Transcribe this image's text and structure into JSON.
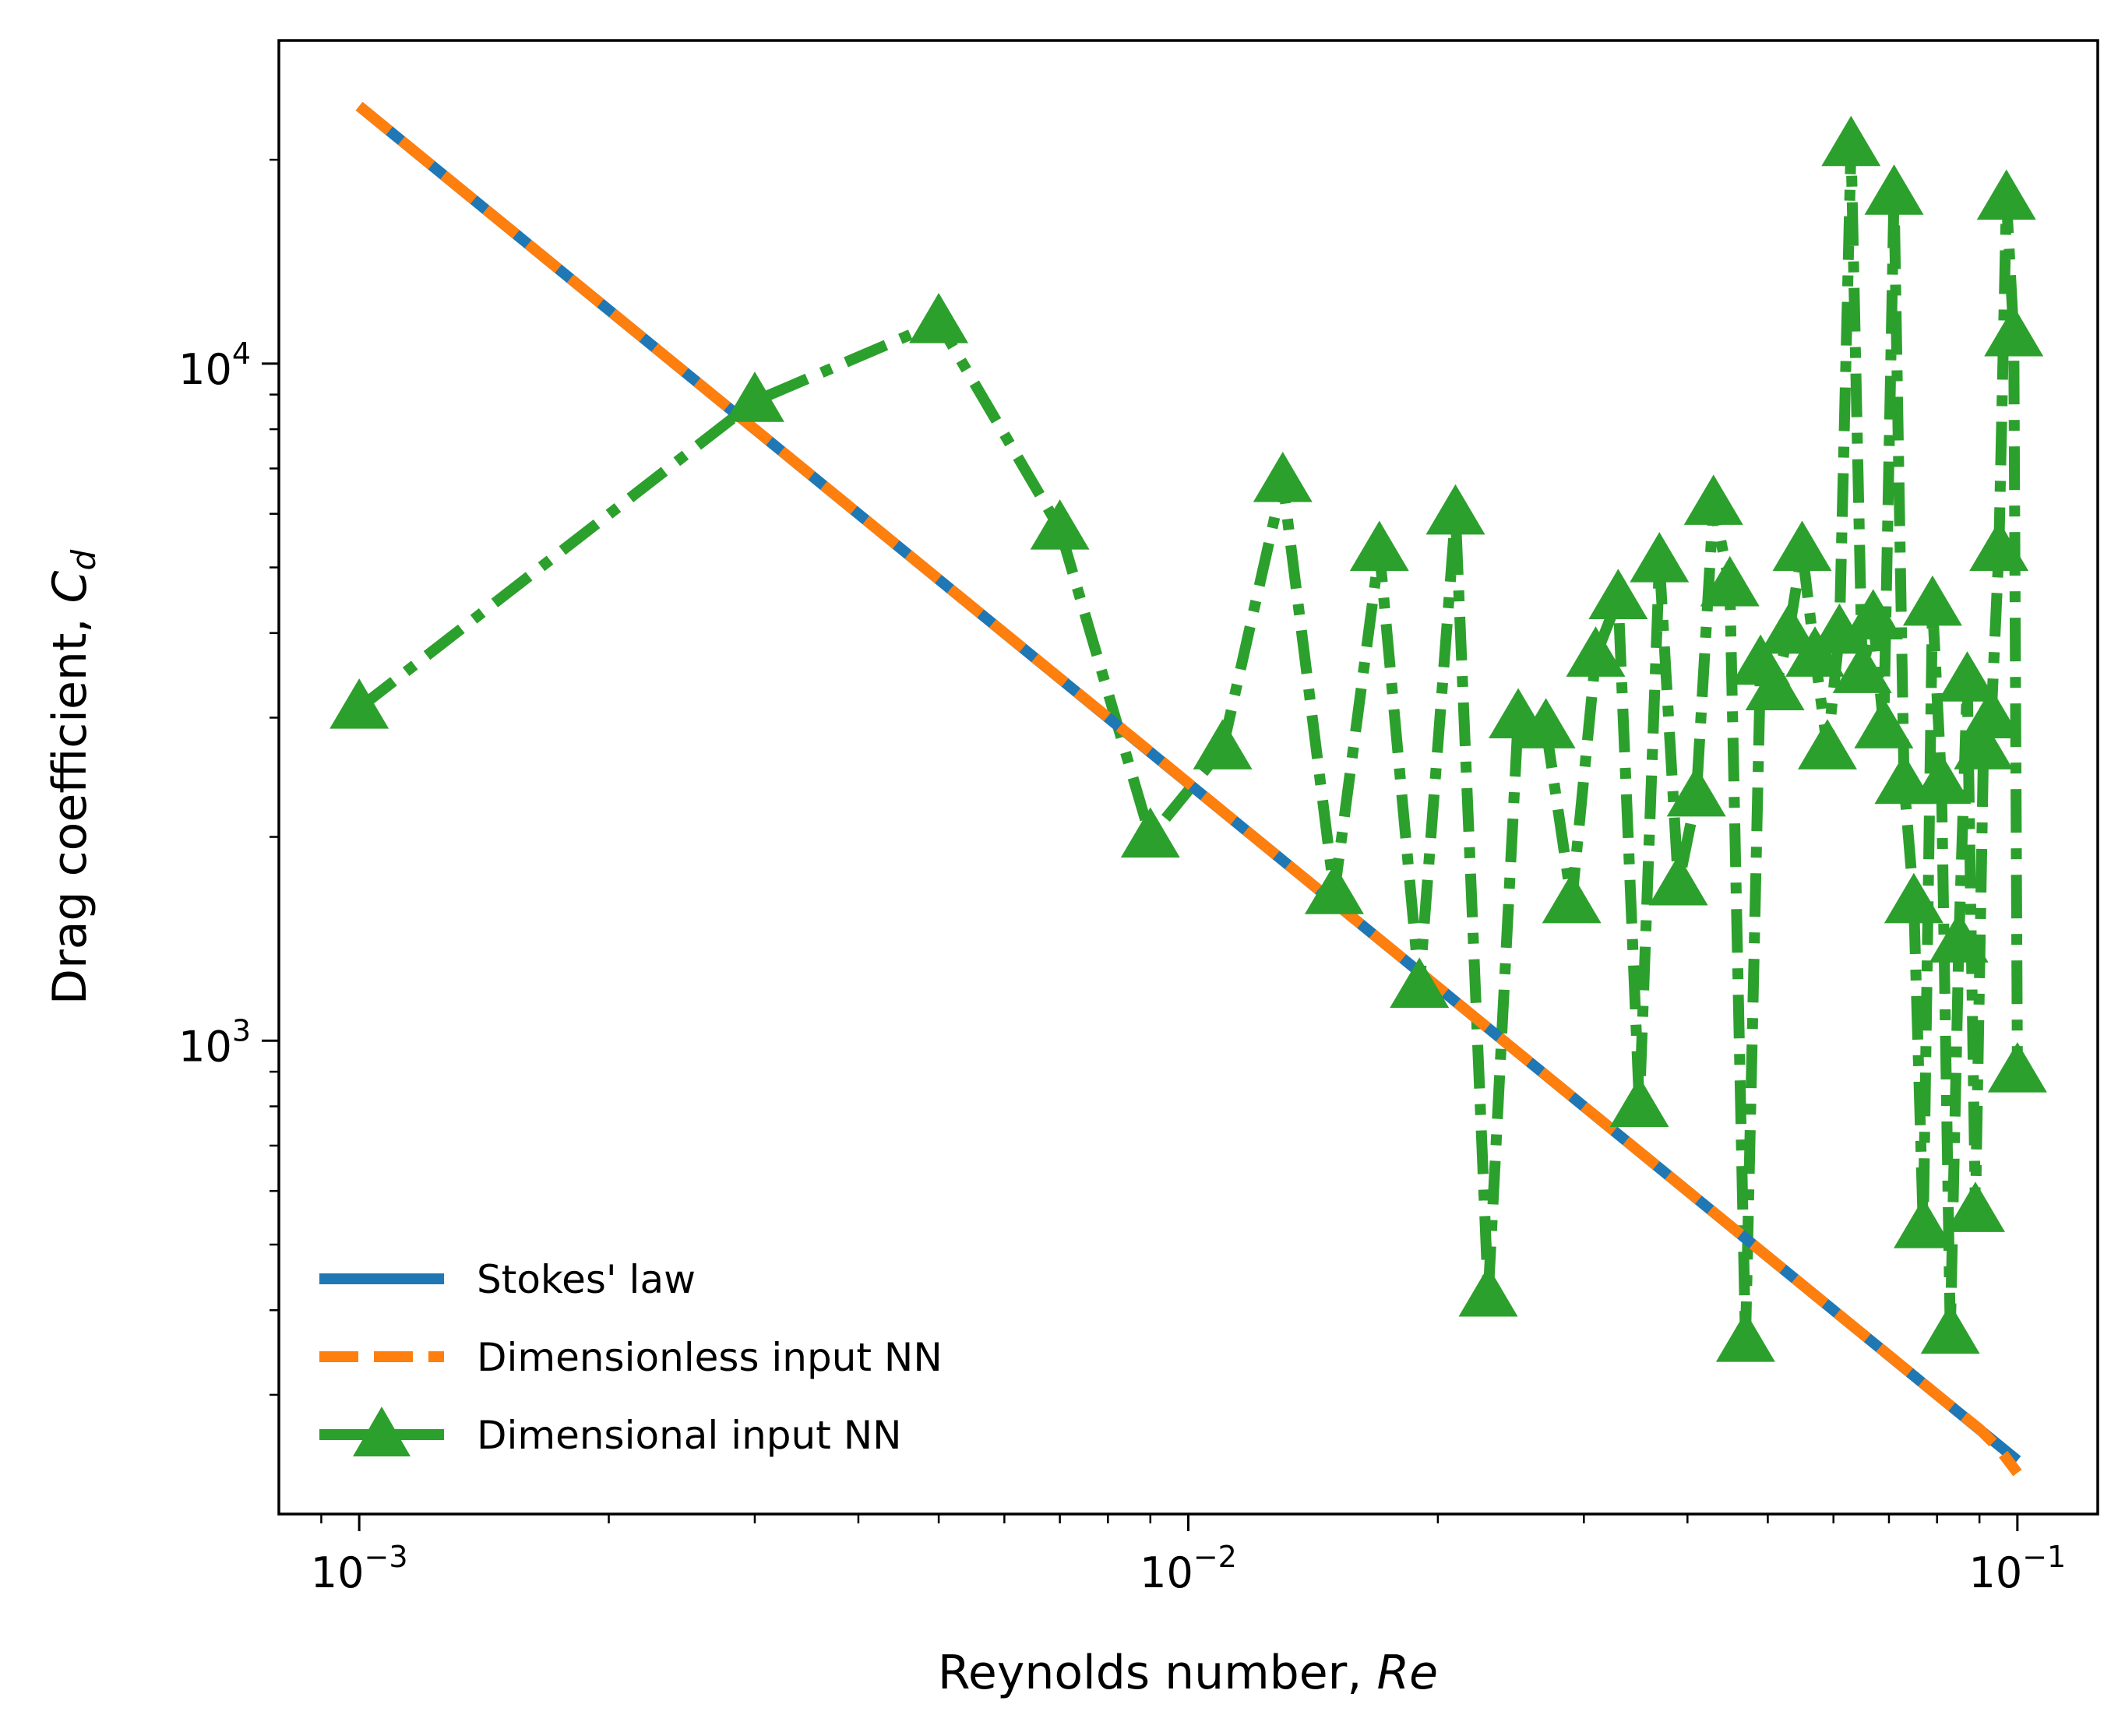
{
  "chart_data": {
    "type": "line",
    "title": "",
    "xlabel": "Reynolds number, ",
    "xlabel_italic": "Re",
    "ylabel": "Drag coefficient, ",
    "ylabel_italic": "C",
    "ylabel_sub": "d",
    "xscale": "log",
    "yscale": "log",
    "xlim": [
      0.0008,
      0.125
    ],
    "ylim": [
      200,
      30000
    ],
    "xticks": [
      {
        "value": 0.001,
        "base": "10",
        "exp": "−3"
      },
      {
        "value": 0.01,
        "base": "10",
        "exp": "−2"
      },
      {
        "value": 0.1,
        "base": "10",
        "exp": "−1"
      }
    ],
    "yticks": [
      {
        "value": 1000,
        "base": "10",
        "exp": "3"
      },
      {
        "value": 10000,
        "base": "10",
        "exp": "4"
      }
    ],
    "grid": false,
    "legend_position": "lower-left",
    "series": [
      {
        "name": "Stokes' law",
        "color": "#1f77b4",
        "style": "solid",
        "marker": "none",
        "x": [
          0.001,
          0.1
        ],
        "y": [
          24000,
          240
        ]
      },
      {
        "name": "Dimensionless input NN",
        "color": "#ff7f0e",
        "style": "dashed",
        "marker": "none",
        "x": [
          0.001,
          0.002,
          0.003,
          0.005,
          0.007,
          0.009,
          0.012,
          0.016,
          0.02,
          0.025,
          0.032,
          0.04,
          0.05,
          0.06,
          0.07,
          0.08,
          0.09,
          0.095,
          0.1
        ],
        "y": [
          24000,
          12000,
          8000,
          4800,
          3430,
          2670,
          2000,
          1500,
          1200,
          960,
          750,
          600,
          480,
          400,
          343,
          300,
          267,
          250,
          230
        ]
      },
      {
        "name": "Dimensional input NN",
        "color": "#2ca02c",
        "style": "dashdot",
        "marker": "triangle-up",
        "x": [
          0.001,
          0.003,
          0.005,
          0.007,
          0.009,
          0.011,
          0.013,
          0.015,
          0.017,
          0.019,
          0.021,
          0.023,
          0.025,
          0.027,
          0.029,
          0.031,
          0.033,
          0.035,
          0.037,
          0.039,
          0.041,
          0.043,
          0.045,
          0.047,
          0.049,
          0.051,
          0.053,
          0.055,
          0.057,
          0.059,
          0.061,
          0.063,
          0.065,
          0.067,
          0.069,
          0.071,
          0.073,
          0.075,
          0.077,
          0.079,
          0.081,
          0.083,
          0.085,
          0.087,
          0.089,
          0.091,
          0.093,
          0.095,
          0.097,
          0.099,
          0.1
        ],
        "y": [
          3100,
          8800,
          11500,
          5700,
          2000,
          2700,
          6700,
          1650,
          5300,
          1200,
          6000,
          420,
          3000,
          2900,
          1600,
          3700,
          4500,
          800,
          5100,
          1700,
          2300,
          6200,
          4700,
          360,
          3600,
          3300,
          4000,
          5300,
          3700,
          2700,
          4000,
          21000,
          3500,
          4200,
          2900,
          17800,
          2400,
          1600,
          530,
          4400,
          2400,
          370,
          1400,
          3400,
          560,
          2700,
          3000,
          5300,
          17500,
          11000,
          900
        ]
      }
    ]
  }
}
